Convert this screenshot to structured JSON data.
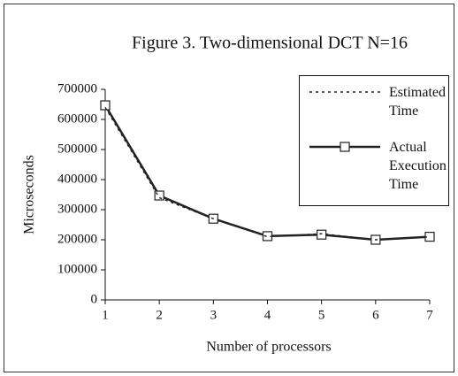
{
  "chart_data": {
    "type": "line",
    "title": "Figure 3. Two-dimensional DCT N=16",
    "x_label": "Number of processors",
    "y_label": "Microseconds",
    "x": [
      1,
      2,
      3,
      4,
      5,
      6,
      7
    ],
    "xlim": [
      1,
      7
    ],
    "xticks": [
      1,
      2,
      3,
      4,
      5,
      6,
      7
    ],
    "ylim": [
      0,
      700000
    ],
    "yticks": [
      0,
      100000,
      200000,
      300000,
      400000,
      500000,
      600000,
      700000
    ],
    "legend": "upper right",
    "series": [
      {
        "name": "Estimated Time",
        "color": "#222222",
        "style": "dotted",
        "values": [
          640000,
          340000,
          270000,
          210000,
          220000,
          200000,
          210000
        ]
      },
      {
        "name": "Actual Execution Time",
        "color": "#222222",
        "style": "solid",
        "marker": "square",
        "values": [
          647000,
          347000,
          270000,
          212000,
          217000,
          200000,
          210000
        ]
      }
    ]
  }
}
